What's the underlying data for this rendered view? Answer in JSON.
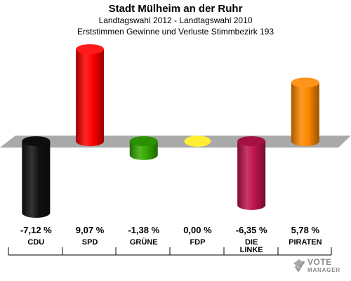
{
  "header": {
    "title": "Stadt Mülheim an der Ruhr",
    "subtitle": "Landtagswahl 2012 - Landtagswahl 2010",
    "subtitle2": "Erststimmen Gewinne und Verluste Stimmbezirk 193"
  },
  "chart_data": {
    "type": "bar",
    "title": "Stadt Mülheim an der Ruhr",
    "categories": [
      "CDU",
      "SPD",
      "GRÜNE",
      "FDP",
      "DIE LINKE",
      "PIRATEN"
    ],
    "category_lines": [
      [
        "CDU"
      ],
      [
        "SPD"
      ],
      [
        "GRÜNE"
      ],
      [
        "FDP"
      ],
      [
        "DIE",
        "LINKE"
      ],
      [
        "PIRATEN"
      ]
    ],
    "values": [
      -7.12,
      9.07,
      -1.38,
      0.0,
      -6.35,
      5.78
    ],
    "value_labels": [
      "-7,12 %",
      "9,07 %",
      "-1,38 %",
      "0,00 %",
      "-6,35 %",
      "5,78 %"
    ],
    "colors": [
      "#111111",
      "#ff0000",
      "#33aa00",
      "#ffee33",
      "#c0144c",
      "#ff8800"
    ],
    "ylim": [
      -7.12,
      9.07
    ],
    "grid": false
  },
  "logo": {
    "line1": "VOTE",
    "line2": "MANAGER"
  }
}
